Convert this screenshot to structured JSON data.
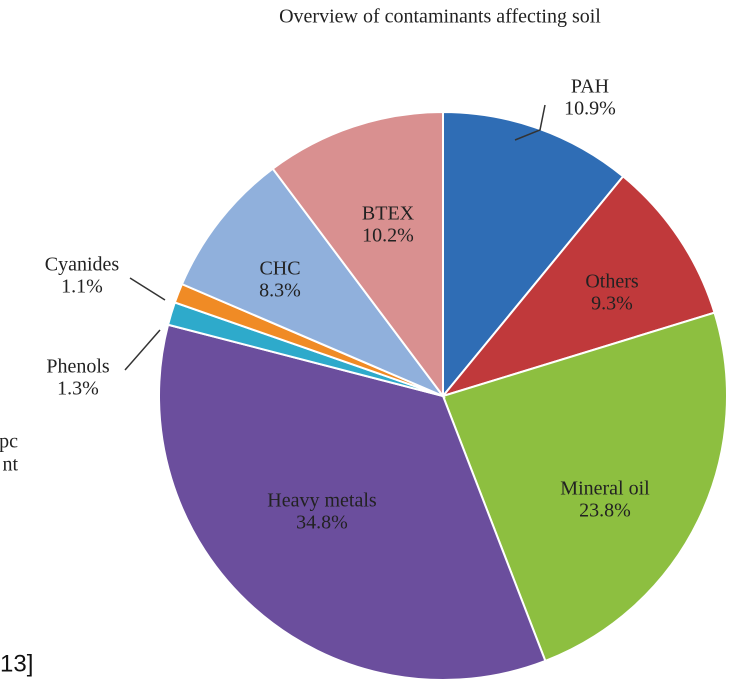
{
  "chart_data": {
    "type": "pie",
    "title": "Overview of contaminants affecting soil",
    "categories": [
      "PAH",
      "Others",
      "Mineral oil",
      "Heavy metals",
      "Phenols",
      "Cyanides",
      "CHC",
      "BTEX"
    ],
    "values": [
      10.9,
      9.3,
      23.8,
      34.8,
      1.3,
      1.1,
      8.3,
      10.2
    ],
    "value_labels": [
      "10.9%",
      "9.3%",
      "23.8%",
      "34.8%",
      "1.3%",
      "1.1%",
      "8.3%",
      "10.2%"
    ],
    "colors": [
      "#2f6db5",
      "#c0393b",
      "#8dbf40",
      "#6b4e9d",
      "#2eaacb",
      "#f08b25",
      "#90b0dc",
      "#d99090"
    ]
  },
  "fragments": [
    "pc",
    "nt",
    "13]"
  ]
}
